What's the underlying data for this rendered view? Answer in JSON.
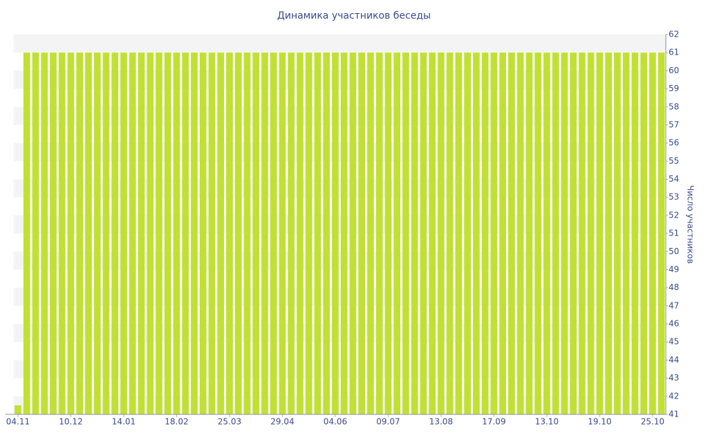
{
  "chart_data": {
    "type": "bar",
    "title": "Динамика участников беседы",
    "y_axis_label": "Число участников",
    "categories": [
      "04.11",
      null,
      null,
      null,
      null,
      null,
      "10.12",
      null,
      null,
      null,
      null,
      null,
      "14.01",
      null,
      null,
      null,
      null,
      null,
      "18.02",
      null,
      null,
      null,
      null,
      null,
      "25.03",
      null,
      null,
      null,
      null,
      null,
      "29.04",
      null,
      null,
      null,
      null,
      null,
      "04.06",
      null,
      null,
      null,
      null,
      null,
      "09.07",
      null,
      null,
      null,
      null,
      null,
      "13.08",
      null,
      null,
      null,
      null,
      null,
      "17.09",
      null,
      null,
      null,
      null,
      null,
      "13.10",
      null,
      null,
      null,
      null,
      null,
      "19.10",
      null,
      null,
      null,
      null,
      null,
      "25.10",
      null
    ],
    "values": [
      41.5,
      61,
      61,
      61,
      61,
      61,
      61,
      61,
      61,
      61,
      61,
      61,
      61,
      61,
      61,
      61,
      61,
      61,
      61,
      61,
      61,
      61,
      61,
      61,
      61,
      61,
      61,
      61,
      61,
      61,
      61,
      61,
      61,
      61,
      61,
      61,
      61,
      61,
      61,
      61,
      61,
      61,
      61,
      61,
      61,
      61,
      61,
      61,
      61,
      61,
      61,
      61,
      61,
      61,
      61,
      61,
      61,
      61,
      61,
      61,
      61,
      61,
      61,
      61,
      61,
      61,
      61,
      61,
      61,
      61,
      61,
      61,
      61,
      61
    ],
    "color": "#c1e033",
    "ylim": [
      41,
      62
    ],
    "yticks": [
      41,
      42,
      43,
      44,
      45,
      46,
      47,
      48,
      49,
      50,
      51,
      52,
      53,
      54,
      55,
      56,
      57,
      58,
      59,
      60,
      61,
      62
    ],
    "grid": true
  }
}
